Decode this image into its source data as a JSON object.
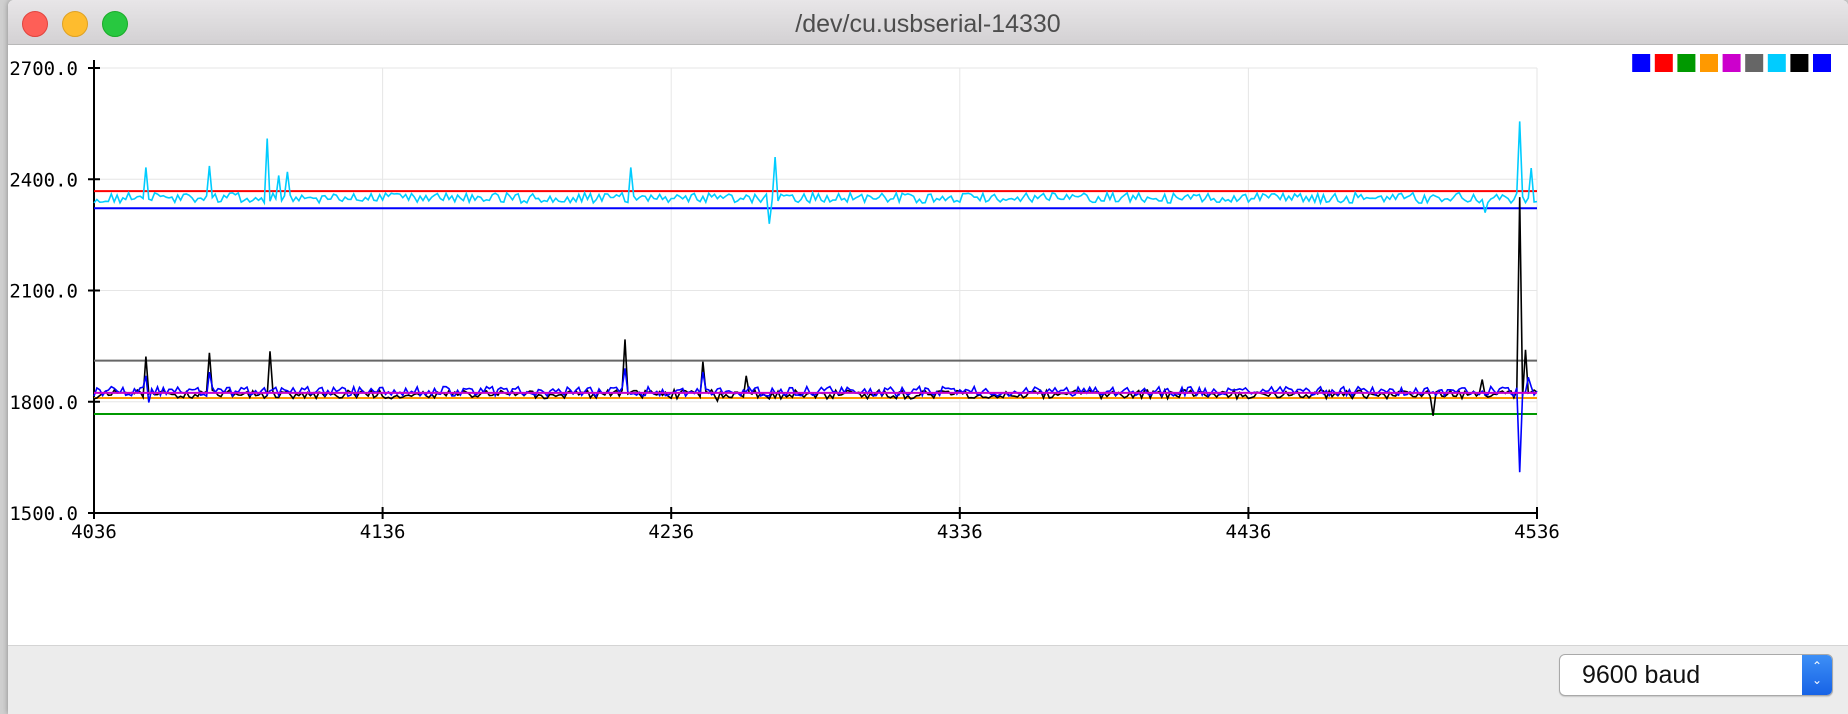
{
  "window": {
    "title": "/dev/cu.usbserial-14330"
  },
  "controls": {
    "baud_label": "9600 baud"
  },
  "chart_data": {
    "type": "line",
    "xlim": [
      4036,
      4536
    ],
    "ylim": [
      1500,
      2700
    ],
    "y_ticks": [
      "2700.0",
      "2400.0",
      "2100.0",
      "1800.0",
      "1500.0"
    ],
    "x_ticks": [
      "4036",
      "4136",
      "4236",
      "4336",
      "4436",
      "4536"
    ],
    "y_tick_values": [
      2700,
      2400,
      2100,
      1800,
      1500
    ],
    "x_tick_values": [
      4036,
      4136,
      4236,
      4336,
      4436,
      4536
    ],
    "grid": true,
    "legend": "top-right",
    "legend_colors": [
      "#0000ff",
      "#ff0000",
      "#009900",
      "#ff9900",
      "#cc00cc",
      "#666666",
      "#00ccff",
      "#000000",
      "#0000ff"
    ],
    "series": [
      {
        "color": "#ff0000",
        "kind": "flat",
        "value": 2368
      },
      {
        "color": "#0000ff",
        "kind": "flat",
        "value": 2322
      },
      {
        "color": "#666666",
        "kind": "flat",
        "value": 1911
      },
      {
        "color": "#ff9900",
        "kind": "flat",
        "value": 1810
      },
      {
        "color": "#009900",
        "kind": "flat",
        "value": 1767
      },
      {
        "color": "#00ccff",
        "kind": "noisy",
        "base": 2350,
        "amp": 14,
        "spikes": [
          [
            4054,
            2432
          ],
          [
            4076,
            2436
          ],
          [
            4096,
            2510
          ],
          [
            4100,
            2410
          ],
          [
            4103,
            2420
          ],
          [
            4222,
            2432
          ],
          [
            4272,
            2460
          ],
          [
            4270,
            2280
          ],
          [
            4518,
            2440
          ],
          [
            4530,
            2556
          ],
          [
            4534,
            2430
          ],
          [
            4518,
            2310
          ]
        ]
      },
      {
        "color": "#000000",
        "kind": "noisy",
        "base": 1820,
        "amp": 12,
        "spikes": [
          [
            4054,
            1922
          ],
          [
            4076,
            1932
          ],
          [
            4097,
            1936
          ],
          [
            4220,
            1968
          ],
          [
            4247,
            1908
          ],
          [
            4252,
            1802
          ],
          [
            4262,
            1870
          ],
          [
            4500,
            1762
          ],
          [
            4517,
            1860
          ],
          [
            4530,
            2352
          ],
          [
            4532,
            1940
          ]
        ]
      },
      {
        "color": "#0000ff",
        "kind": "noisy",
        "base": 1828,
        "amp": 13,
        "spikes": [
          [
            4054,
            1870
          ],
          [
            4055,
            1798
          ],
          [
            4076,
            1880
          ],
          [
            4220,
            1890
          ],
          [
            4247,
            1880
          ],
          [
            4530,
            1610
          ],
          [
            4533,
            1866
          ]
        ]
      },
      {
        "color": "#cc00cc",
        "kind": "flat",
        "value": 1824
      }
    ]
  }
}
